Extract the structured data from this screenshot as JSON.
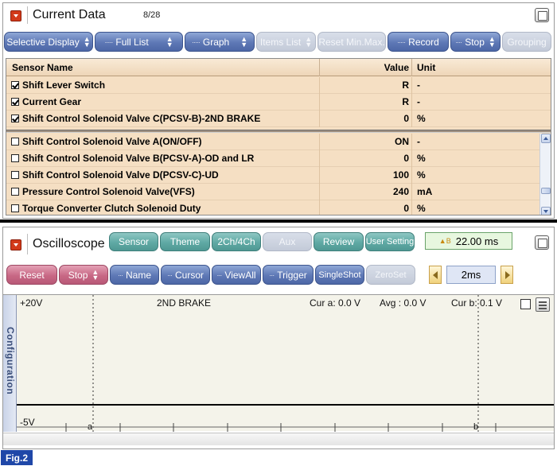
{
  "current_data": {
    "title": "Current Data",
    "counter": "8/28",
    "toolbar": [
      {
        "label": "Selective Display",
        "state": "enabled",
        "spinner": true
      },
      {
        "label": "Full List",
        "state": "enabled",
        "spinner": true
      },
      {
        "label": "Graph",
        "state": "enabled",
        "spinner": true
      },
      {
        "label": "Items List",
        "state": "disabled",
        "spinner": true
      },
      {
        "label": "Reset Min.Max.",
        "state": "disabled",
        "spinner": false
      },
      {
        "label": "Record",
        "state": "enabled",
        "spinner": false
      },
      {
        "label": "Stop",
        "state": "enabled",
        "spinner": true
      },
      {
        "label": "Grouping",
        "state": "disabled",
        "spinner": false
      }
    ],
    "columns": {
      "name": "Sensor Name",
      "value": "Value",
      "unit": "Unit"
    },
    "rows": [
      {
        "checked": true,
        "name": "Shift Lever Switch",
        "value": "R",
        "unit": "-"
      },
      {
        "checked": true,
        "name": "Current Gear",
        "value": "R",
        "unit": "-"
      },
      {
        "checked": true,
        "name": "Shift Control Solenoid Valve C(PCSV-B)-2ND BRAKE",
        "value": "0",
        "unit": "%"
      },
      {
        "checked": false,
        "name": "Shift Control Solenoid Valve A(ON/OFF)",
        "value": "ON",
        "unit": "-"
      },
      {
        "checked": false,
        "name": "Shift Control Solenoid Valve B(PCSV-A)-OD and LR",
        "value": "0",
        "unit": "%"
      },
      {
        "checked": false,
        "name": "Shift Control Solenoid Valve D(PCSV-C)-UD",
        "value": "100",
        "unit": "%"
      },
      {
        "checked": false,
        "name": "Pressure Control Solenoid Valve(VFS)",
        "value": "240",
        "unit": "mA"
      },
      {
        "checked": false,
        "name": "Torque Converter Clutch Solenoid Duty",
        "value": "0",
        "unit": "%"
      }
    ]
  },
  "oscilloscope": {
    "title": "Oscilloscope",
    "time_display": "22.00 ms",
    "time_icon": "clock-icon",
    "top_buttons": [
      {
        "label": "Sensor",
        "state": "enabled"
      },
      {
        "label": "Theme",
        "state": "enabled"
      },
      {
        "label": "2Ch/4Ch",
        "state": "enabled"
      },
      {
        "label": "Aux",
        "state": "disabled"
      },
      {
        "label": "Review",
        "state": "enabled"
      },
      {
        "label": "User Setting",
        "state": "enabled"
      }
    ],
    "bottom_buttons": [
      {
        "label": "Reset",
        "color": "pink",
        "spinner": false
      },
      {
        "label": "Stop",
        "color": "pink",
        "spinner": true
      },
      {
        "label": "Name",
        "color": "blue",
        "spinner": false
      },
      {
        "label": "Cursor",
        "color": "blue",
        "spinner": false
      },
      {
        "label": "ViewAll",
        "color": "blue",
        "spinner": false
      },
      {
        "label": "Trigger",
        "color": "blue",
        "spinner": false
      },
      {
        "label": "SingleShot",
        "color": "blue",
        "spinner": false
      },
      {
        "label": "ZeroSet",
        "color": "disabled",
        "spinner": false
      }
    ],
    "timebase": "2ms",
    "config_tab": "Configuration",
    "plot": {
      "y_max_label": "+20V",
      "y_min_label": "-5V",
      "channel": "2ND BRAKE",
      "cur_a": "Cur a: 0.0 V",
      "avg": "Avg : 0.0 V",
      "cur_b": "Cur b: 0.1 V",
      "cursor_a": "a",
      "cursor_b": "b"
    }
  },
  "figure_label": "Fig.2"
}
